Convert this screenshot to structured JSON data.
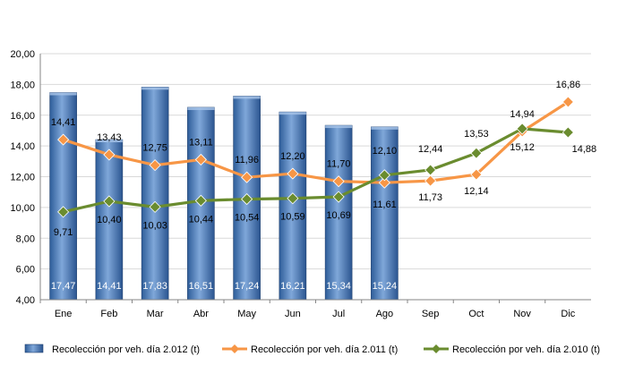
{
  "chart_data": {
    "type": "bar",
    "categories": [
      "Ene",
      "Feb",
      "Mar",
      "Abr",
      "May",
      "Jun",
      "Jul",
      "Ago",
      "Sep",
      "Oct",
      "Nov",
      "Dic"
    ],
    "ylim": [
      4,
      20
    ],
    "yticks": [
      "4,00",
      "6,00",
      "8,00",
      "10,00",
      "12,00",
      "14,00",
      "16,00",
      "18,00",
      "20,00"
    ],
    "grid": "horizontal",
    "legend_position": "bottom",
    "series": [
      {
        "name": "Recolección por veh. día 2.012 (t)",
        "kind": "bar",
        "color": "#4f81bd",
        "values": [
          17.47,
          14.41,
          17.83,
          16.51,
          17.24,
          16.21,
          15.34,
          15.24,
          null,
          null,
          null,
          null
        ],
        "labels": [
          "17,47",
          "14,41",
          "17,83",
          "16,51",
          "17,24",
          "16,21",
          "15,34",
          "15,24",
          "",
          "",
          "",
          ""
        ]
      },
      {
        "name": "Recolección por veh. día 2.011 (t)",
        "kind": "line",
        "color": "#f79646",
        "values": [
          14.41,
          13.43,
          12.75,
          13.11,
          11.96,
          12.2,
          11.7,
          11.61,
          11.73,
          12.14,
          14.94,
          16.86
        ],
        "labels": [
          "14,41",
          "13,43",
          "12,75",
          "13,11",
          "11,96",
          "12,20",
          "11,70",
          "11,61",
          "11,73",
          "12,14",
          "14,94",
          "16,86"
        ]
      },
      {
        "name": "Recolección por veh. día 2.010 (t)",
        "kind": "line",
        "color": "#6a8c2f",
        "values": [
          9.71,
          10.4,
          10.03,
          10.44,
          10.54,
          10.59,
          10.69,
          12.1,
          12.44,
          13.53,
          15.12,
          14.88
        ],
        "labels": [
          "9,71",
          "10,40",
          "10,03",
          "10,44",
          "10,54",
          "10,59",
          "10,69",
          "12,10",
          "12,44",
          "13,53",
          "15,12",
          "14,88"
        ]
      }
    ]
  }
}
